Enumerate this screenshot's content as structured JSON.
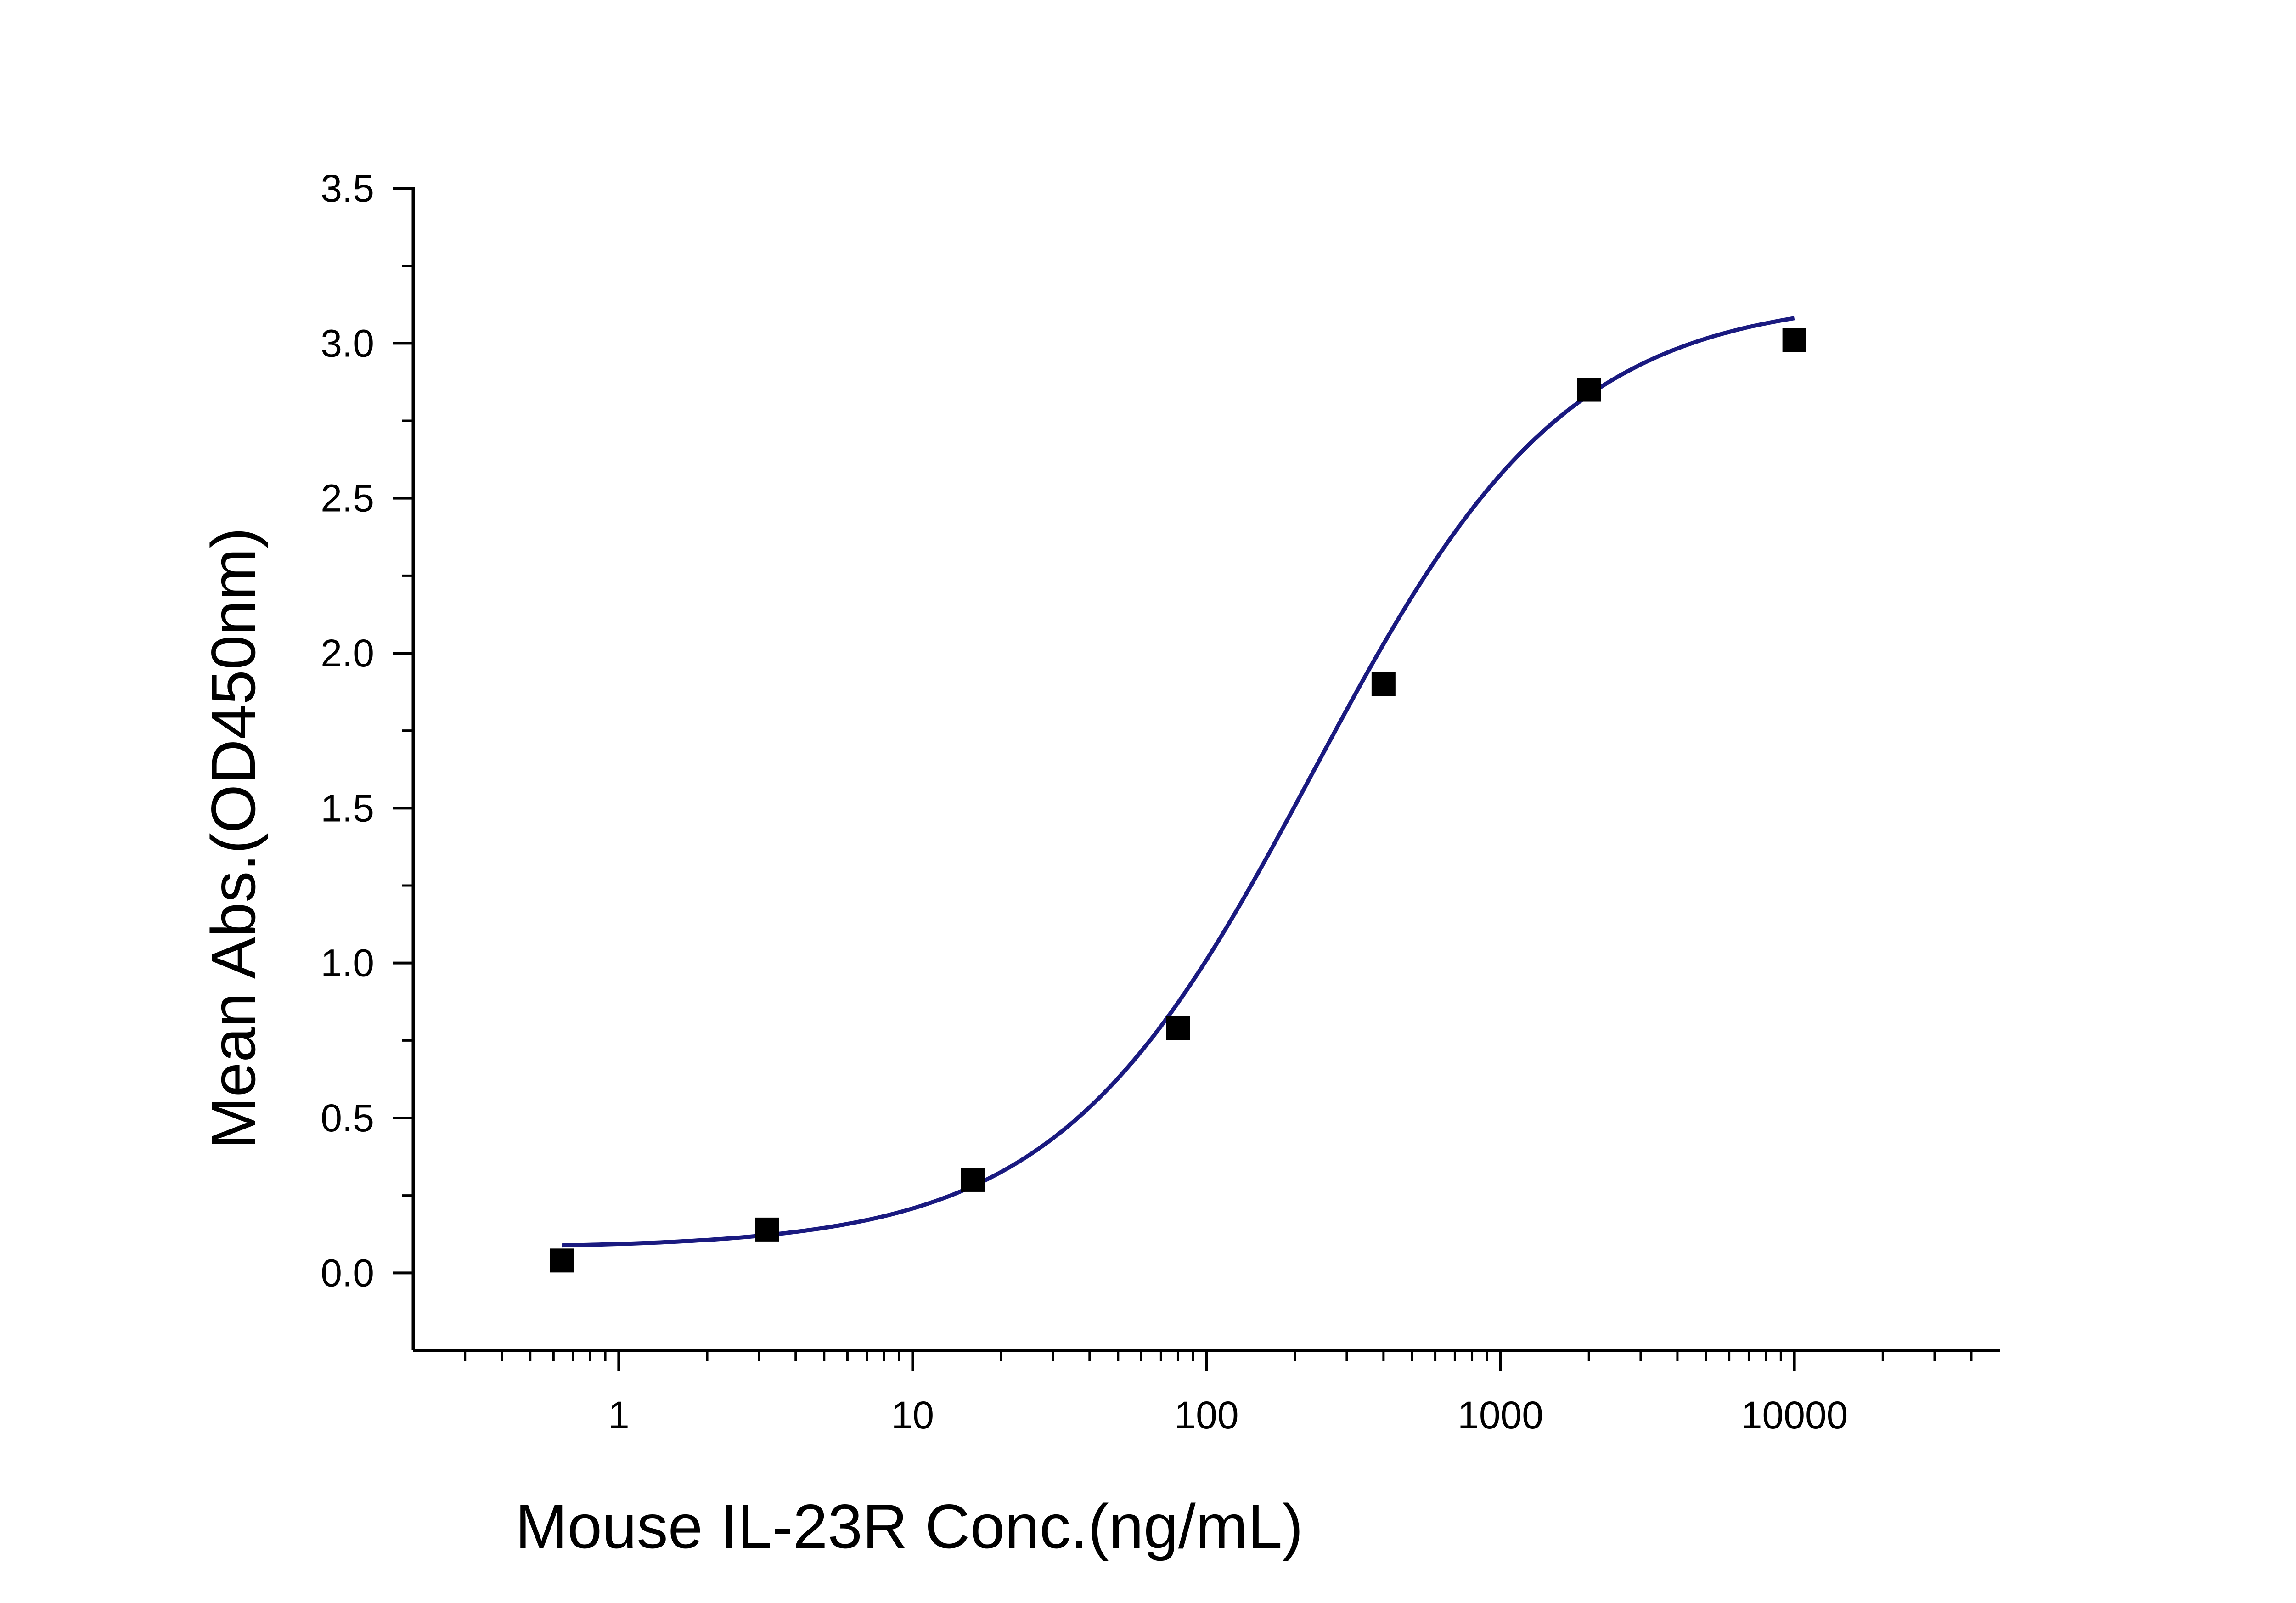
{
  "chart_data": {
    "type": "scatter",
    "title": "",
    "xlabel": "Mouse IL-23R Conc.(ng/mL)",
    "ylabel": "Mean Abs.(OD450nm)",
    "x_scale": "log",
    "xlim": [
      0.2,
      50000
    ],
    "ylim": [
      -0.25,
      3.5
    ],
    "x_ticks": [
      1,
      10,
      100,
      1000,
      10000
    ],
    "x_tick_labels": [
      "1",
      "10",
      "100",
      "1000",
      "10000"
    ],
    "y_ticks": [
      0,
      0.5,
      1,
      1.5,
      2,
      2.5,
      3,
      3.5
    ],
    "y_tick_labels": [
      "0.0",
      "0.5",
      "1.0",
      "1.5",
      "2.0",
      "2.5",
      "3.0",
      "3.5"
    ],
    "grid": false,
    "legend": "none",
    "series": [
      {
        "values_x": [
          0.64,
          3.2,
          16,
          80,
          400,
          2000,
          10000
        ],
        "values_y": [
          0.04,
          0.14,
          0.3,
          0.79,
          1.9,
          2.85,
          3.01
        ],
        "marker": "square",
        "color": "#000000"
      }
    ],
    "fit_curve": {
      "model": "4PL",
      "bottom": 0.08,
      "top": 3.15,
      "ec50": 230,
      "hill": 1.0,
      "x_range": [
        0.64,
        10000
      ],
      "color": "#1a1a80"
    }
  }
}
